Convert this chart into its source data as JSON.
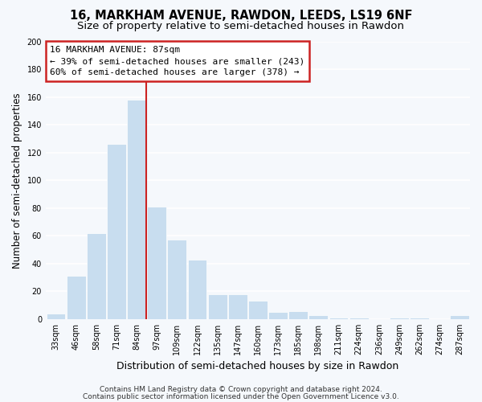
{
  "title": "16, MARKHAM AVENUE, RAWDON, LEEDS, LS19 6NF",
  "subtitle": "Size of property relative to semi-detached houses in Rawdon",
  "xlabel": "Distribution of semi-detached houses by size in Rawdon",
  "ylabel": "Number of semi-detached properties",
  "categories": [
    "33sqm",
    "46sqm",
    "58sqm",
    "71sqm",
    "84sqm",
    "97sqm",
    "109sqm",
    "122sqm",
    "135sqm",
    "147sqm",
    "160sqm",
    "173sqm",
    "185sqm",
    "198sqm",
    "211sqm",
    "224sqm",
    "236sqm",
    "249sqm",
    "262sqm",
    "274sqm",
    "287sqm"
  ],
  "values": [
    4,
    31,
    62,
    126,
    158,
    81,
    57,
    43,
    18,
    18,
    13,
    5,
    6,
    3,
    1,
    1,
    0,
    1,
    1,
    0,
    3
  ],
  "bar_color": "#c8ddef",
  "highlight_line_color": "#cc2222",
  "ylim": [
    0,
    200
  ],
  "yticks": [
    0,
    20,
    40,
    60,
    80,
    100,
    120,
    140,
    160,
    180,
    200
  ],
  "annotation_title": "16 MARKHAM AVENUE: 87sqm",
  "annotation_line1": "← 39% of semi-detached houses are smaller (243)",
  "annotation_line2": "60% of semi-detached houses are larger (378) →",
  "annotation_box_facecolor": "#ffffff",
  "annotation_box_edgecolor": "#cc2222",
  "footer1": "Contains HM Land Registry data © Crown copyright and database right 2024.",
  "footer2": "Contains public sector information licensed under the Open Government Licence v3.0.",
  "fig_facecolor": "#f5f8fc",
  "plot_facecolor": "#f5f8fc",
  "grid_color": "#ffffff",
  "title_fontsize": 10.5,
  "subtitle_fontsize": 9.5,
  "tick_fontsize": 7,
  "ylabel_fontsize": 8.5,
  "xlabel_fontsize": 9,
  "annotation_fontsize": 8,
  "footer_fontsize": 6.5
}
